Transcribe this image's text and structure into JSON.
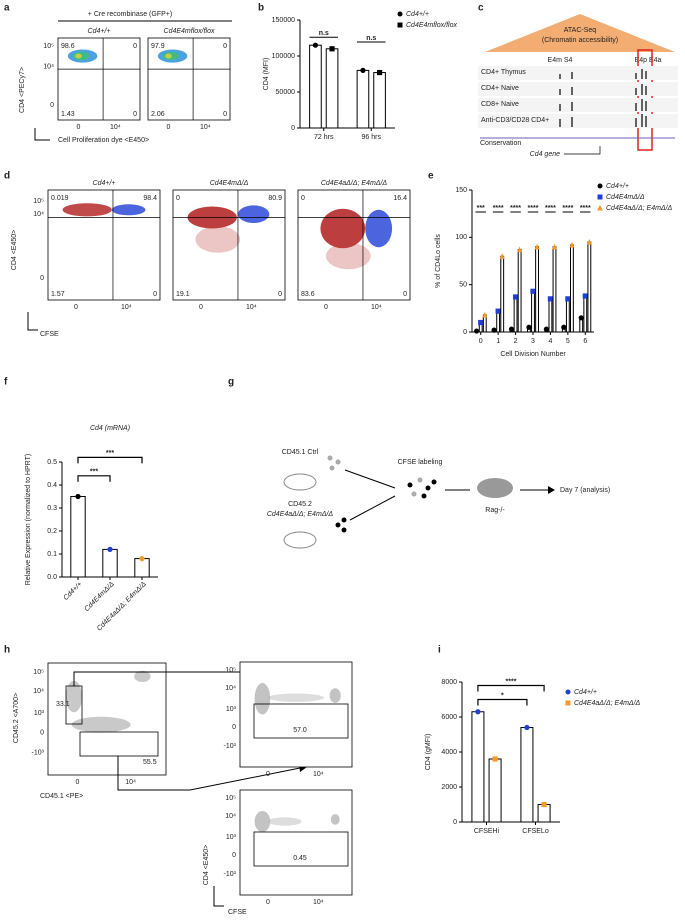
{
  "panel_labels": [
    "a",
    "b",
    "c",
    "d",
    "e",
    "f",
    "g",
    "h",
    "i"
  ],
  "chart_data": [
    {
      "type": "bar",
      "y_label": "CD4 (MFI)",
      "categories": [
        "72 hrs",
        "96 hrs"
      ],
      "series": [
        {
          "name": "Cd4+/+",
          "color": "#000000",
          "marker": "circle",
          "values": [
            115000,
            80000
          ]
        },
        {
          "name": "Cd4E4mflox/flox",
          "color": "#000000",
          "marker": "square",
          "values": [
            110000,
            77000
          ]
        }
      ],
      "ylim": [
        0,
        150000
      ],
      "yticks": [
        0,
        50000,
        100000,
        150000
      ],
      "annotations": [
        "n.s",
        "n.s"
      ]
    },
    {
      "type": "bar",
      "y_label": "% of CD4Lo cells",
      "x_label": "Cell Division Number",
      "categories": [
        "0",
        "1",
        "2",
        "3",
        "4",
        "5",
        "6"
      ],
      "series": [
        {
          "name": "Cd4+/+",
          "color": "#000000",
          "marker": "circle",
          "values": [
            1,
            2,
            3,
            5,
            3,
            5,
            15
          ]
        },
        {
          "name": "Cd4E4mΔ/Δ",
          "color": "#1f3fd6",
          "marker": "square",
          "values": [
            10,
            22,
            37,
            43,
            35,
            35,
            38
          ]
        },
        {
          "name": "Cd4E4aΔ/Δ; E4mΔ/Δ",
          "color": "#f39a2b",
          "marker": "triangle",
          "values": [
            18,
            80,
            87,
            90,
            90,
            92,
            95
          ]
        }
      ],
      "ylim": [
        0,
        150
      ],
      "yticks": [
        0,
        50,
        100,
        150
      ],
      "annotations": [
        "***",
        "****",
        "****",
        "****",
        "****",
        "****",
        "****"
      ]
    },
    {
      "type": "bar",
      "title": "Cd4 (mRNA)",
      "y_label": "Relative Expression (normalized to HPRT)",
      "categories": [
        "Cd4+/+",
        "Cd4E4mΔ/Δ",
        "Cd4E4aΔ/Δ; E4mΔ/Δ"
      ],
      "values": [
        0.35,
        0.12,
        0.08
      ],
      "colors": [
        "#000000",
        "#1f3fd6",
        "#f39a2b"
      ],
      "ylim": [
        0,
        0.5
      ],
      "yticks": [
        {
          "value": 0,
          "label": "0.0"
        },
        0.1,
        0.2,
        0.3,
        0.4,
        0.5
      ],
      "annotations": [
        "***",
        "***"
      ]
    },
    {
      "type": "bar",
      "y_label": "CD4 (gMFI)",
      "categories": [
        "CFSEHi",
        "CFSELo"
      ],
      "series": [
        {
          "name": "Cd4+/+",
          "color": "#1f3fd6",
          "marker": "circle",
          "values": [
            6300,
            5400
          ]
        },
        {
          "name": "Cd4E4aΔ/Δ; E4mΔ/Δ",
          "color": "#f39a2b",
          "marker": "square",
          "values": [
            3600,
            1000
          ]
        }
      ],
      "ylim": [
        0,
        8000
      ],
      "yticks": [
        0,
        2000,
        4000,
        6000,
        8000
      ],
      "annotations": [
        "*",
        "****"
      ]
    }
  ],
  "panel_a": {
    "header": "+ Cre recombinase (GFP+)",
    "y_label": "CD4 <PECy7>",
    "x_label": "Cell Proliferation dye <E450>",
    "y_ticks": [
      "10⁵",
      "10⁴",
      "0"
    ],
    "x_ticks": [
      "0",
      "10⁴"
    ],
    "plots": [
      {
        "title": "Cd4+/+",
        "quadrants": [
          "98.6",
          "0",
          "1.43",
          "0"
        ]
      },
      {
        "title": "Cd4E4mflox/flox",
        "quadrants": [
          "97.9",
          "0",
          "2.06",
          "0"
        ]
      }
    ]
  },
  "panel_c": {
    "title": "ATAC-Seq",
    "subtitle": "(Chromatin accessibility)",
    "regions": [
      "E4m S4",
      "E4p E4a"
    ],
    "tracks": [
      "CD4+ Thymus",
      "CD4+ Naive",
      "CD8+ Naive",
      "Anti-CD3/CD28 CD4+"
    ],
    "conservation": "Conservation",
    "gene": "Cd4 gene"
  },
  "panel_d": {
    "y_label": "CD4 <E450>",
    "x_label": "CFSE",
    "y_ticks": [
      "10⁵",
      "10⁴",
      "0"
    ],
    "x_ticks": [
      "0",
      "10⁴"
    ],
    "plots": [
      {
        "title": "Cd4+/+",
        "quadrants": [
          "0.019",
          "98.4",
          "1.57",
          "0"
        ]
      },
      {
        "title": "Cd4E4mΔ/Δ",
        "quadrants": [
          "0",
          "80.9",
          "19.1",
          "0"
        ]
      },
      {
        "title": "Cd4E4aΔ/Δ; E4mΔ/Δ",
        "quadrants": [
          "0",
          "16.4",
          "83.6",
          "0"
        ]
      }
    ]
  },
  "panel_g": {
    "ctrl": "CD45.1 Ctrl",
    "test": "CD45.2",
    "test_genotype": "Cd4E4aΔ/Δ; E4mΔ/Δ",
    "labeling": "CFSE labeling",
    "host": "Rag-/-",
    "readout": "Day 7 (analysis)"
  },
  "panel_h": {
    "gate_plot": {
      "y_label": "CD45.2 <A700>",
      "x_label": "CD45.1 <PE>",
      "gates": [
        "33.1",
        "55.5"
      ]
    },
    "y_ticks": [
      "10⁵",
      "10⁴",
      "10³",
      "0",
      "-10³"
    ],
    "x_ticks": [
      "0",
      "10⁴"
    ],
    "sub_plots": [
      {
        "gate": "57.0"
      },
      {
        "gate": "0.45"
      }
    ],
    "y_label": "CD4 <E450>",
    "x_label": "CFSE"
  }
}
